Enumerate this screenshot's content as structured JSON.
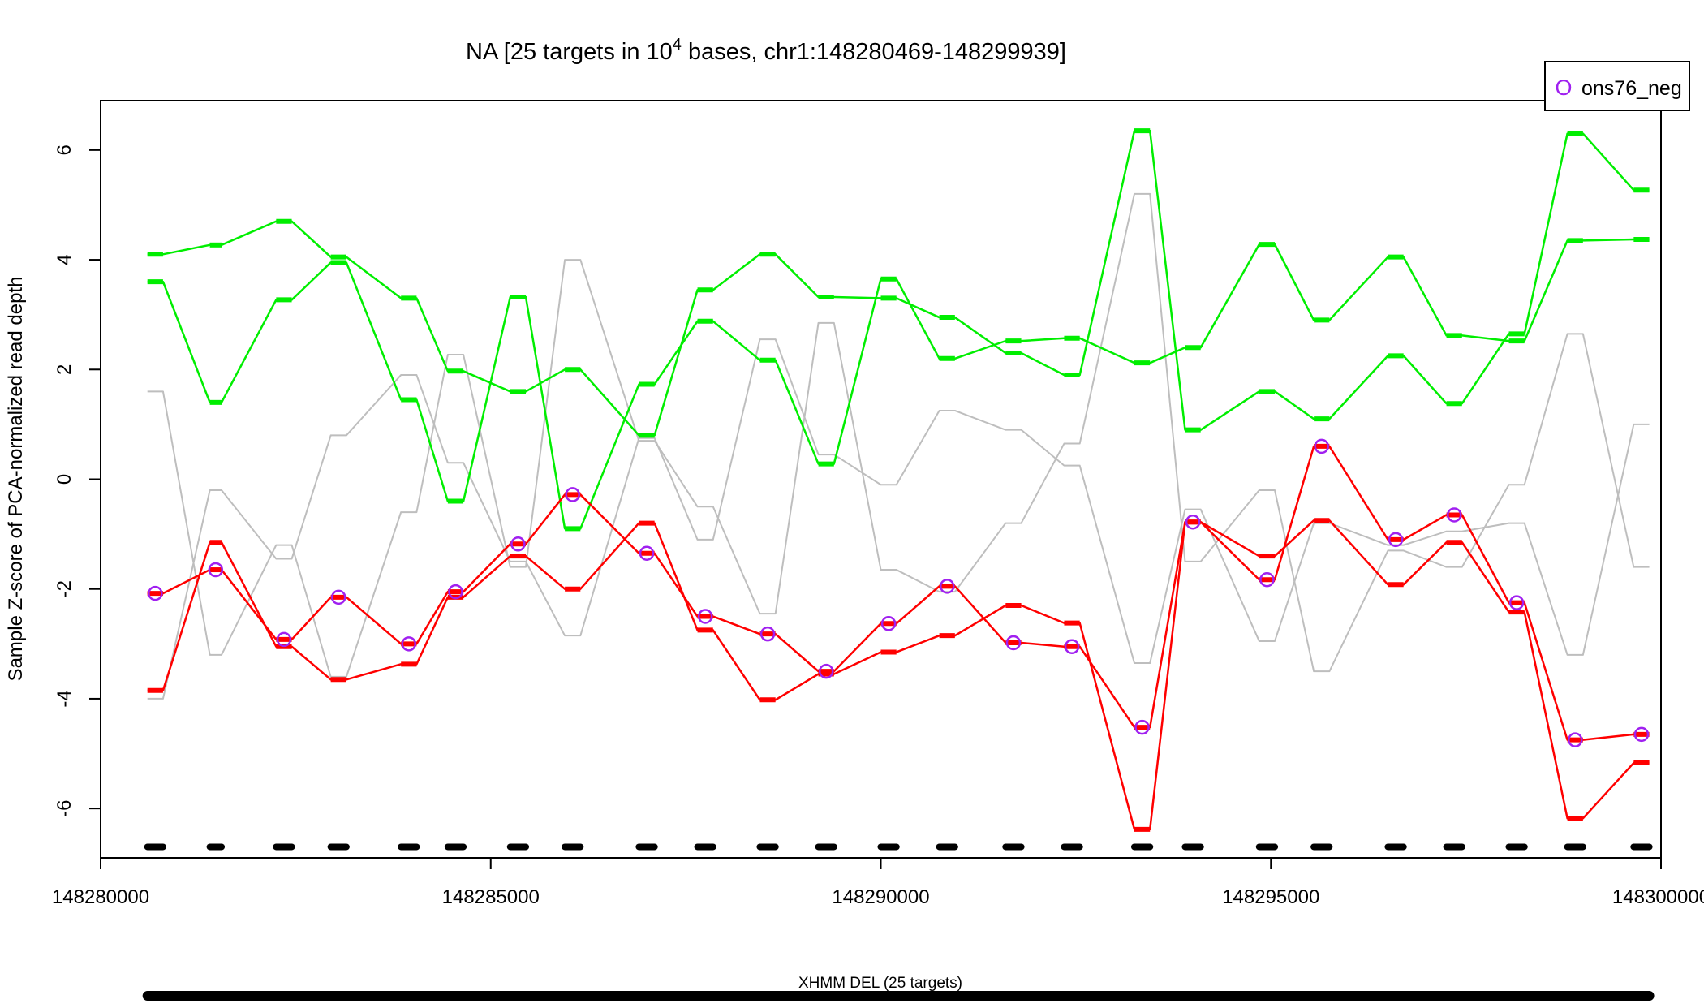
{
  "chart_data": {
    "type": "line",
    "title_prefix": "NA [25 targets in 10",
    "title_superscript": "4",
    "title_suffix": " bases, chr1:148280469-148299939]",
    "ylabel": "Sample Z-score of PCA-normalized read depth",
    "xlabel": "",
    "xlim": [
      148280000,
      148300000
    ],
    "ylim": [
      -6.9,
      6.9
    ],
    "x_ticks": [
      148280000,
      148285000,
      148290000,
      148295000,
      148300000
    ],
    "x_tick_labels": [
      "148280000",
      "148285000",
      "148290000",
      "148295000",
      "148300000"
    ],
    "y_ticks": [
      -6,
      -4,
      -2,
      0,
      2,
      4,
      6
    ],
    "y_tick_labels": [
      "-6",
      "-4",
      "-2",
      "0",
      "2",
      "4",
      "6"
    ],
    "grid": false,
    "legend": {
      "position": "top-right",
      "marker": "O",
      "label": "ons76_neg",
      "color": "#a020f0"
    },
    "targets": [
      [
        148280600,
        148280800
      ],
      [
        148281400,
        148281550
      ],
      [
        148282250,
        148282450
      ],
      [
        148282950,
        148283150
      ],
      [
        148283850,
        148284050
      ],
      [
        148284450,
        148284650
      ],
      [
        148285250,
        148285450
      ],
      [
        148285950,
        148286150
      ],
      [
        148286900,
        148287100
      ],
      [
        148287650,
        148287850
      ],
      [
        148288450,
        148288650
      ],
      [
        148289200,
        148289400
      ],
      [
        148290000,
        148290200
      ],
      [
        148290750,
        148290950
      ],
      [
        148291600,
        148291800
      ],
      [
        148292350,
        148292550
      ],
      [
        148293250,
        148293450
      ],
      [
        148293900,
        148294100
      ],
      [
        148294850,
        148295050
      ],
      [
        148295550,
        148295750
      ],
      [
        148296500,
        148296700
      ],
      [
        148297250,
        148297450
      ],
      [
        148298050,
        148298250
      ],
      [
        148298800,
        148299000
      ],
      [
        148299650,
        148299850
      ]
    ],
    "series": [
      {
        "color": "#bebebe",
        "style": "thin",
        "values": [
          1.6,
          -3.2,
          -1.2,
          -3.6,
          -0.6,
          2.27,
          -1.6,
          4.0,
          0.7,
          -0.5,
          -2.45,
          2.85,
          -1.65,
          -2.05,
          -0.8,
          0.65,
          5.2,
          -1.5,
          -0.2,
          -3.5,
          -1.3,
          -1.6,
          -0.1,
          2.65,
          -1.6
        ]
      },
      {
        "color": "#bebebe",
        "style": "thin",
        "values": [
          -4.0,
          -0.2,
          -1.45,
          0.8,
          1.9,
          0.3,
          -1.5,
          -2.85,
          0.75,
          -1.1,
          2.55,
          0.45,
          -0.1,
          1.25,
          0.9,
          0.25,
          -3.35,
          -0.55,
          -2.95,
          -0.8,
          -1.2,
          -0.95,
          -0.8,
          -3.2,
          1.0
        ]
      },
      {
        "color": "#00ee00",
        "style": "thick",
        "values": [
          4.1,
          4.27,
          4.7,
          4.05,
          3.3,
          1.97,
          1.6,
          2.0,
          0.8,
          3.45,
          4.1,
          3.32,
          3.3,
          2.95,
          2.3,
          1.9,
          6.35,
          0.9,
          1.6,
          1.1,
          2.25,
          1.38,
          2.65,
          6.3,
          5.27
        ]
      },
      {
        "color": "#00ee00",
        "style": "thick",
        "values": [
          3.6,
          1.4,
          3.27,
          3.95,
          1.45,
          -0.4,
          3.32,
          -0.9,
          1.73,
          2.88,
          2.17,
          0.28,
          3.65,
          2.2,
          2.52,
          2.57,
          2.12,
          2.4,
          4.28,
          2.9,
          4.05,
          2.62,
          2.52,
          4.35,
          4.37
        ]
      },
      {
        "color": "#ff0000",
        "style": "thick",
        "values": [
          -3.85,
          -1.15,
          -3.05,
          -3.65,
          -3.37,
          -2.15,
          -1.4,
          -2.0,
          -0.8,
          -2.75,
          -4.02,
          -3.55,
          -3.15,
          -2.85,
          -2.3,
          -2.62,
          -6.38,
          -0.78,
          -1.4,
          -0.75,
          -1.92,
          -1.15,
          -2.42,
          -6.18,
          -5.17
        ]
      },
      {
        "color": "#ff0000",
        "style": "thick",
        "marker": "O",
        "markerColor": "#a020f0",
        "name": "ons76_neg",
        "values": [
          -2.08,
          -1.65,
          -2.92,
          -2.15,
          -3.0,
          -2.05,
          -1.18,
          -0.28,
          -1.35,
          -2.5,
          -2.82,
          -3.5,
          -2.63,
          -1.95,
          -2.98,
          -3.05,
          -4.52,
          -0.78,
          -1.83,
          0.6,
          -1.1,
          -0.65,
          -2.25,
          -4.75,
          -4.65
        ]
      }
    ],
    "target_bar_y": -6.7,
    "cnv_call": {
      "label": "XHMM DEL (25 targets)",
      "start": 148280600,
      "end": 148299850
    }
  }
}
